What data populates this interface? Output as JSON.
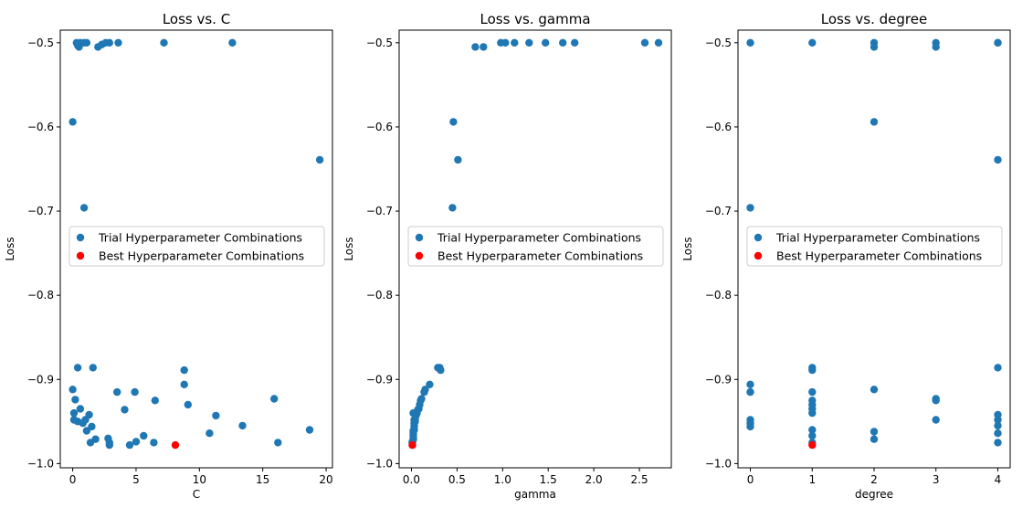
{
  "colors": {
    "trial": "#1f77b4",
    "best": "#ff0000",
    "axis": "#000000",
    "legend_border": "#cccccc"
  },
  "chart_data": [
    {
      "type": "scatter",
      "title": "Loss vs. C",
      "xlabel": "C",
      "ylabel": "Loss",
      "xlim": [
        -0.98,
        20.5
      ],
      "ylim": [
        -1.005,
        -0.485
      ],
      "xticks": [
        0,
        5,
        10,
        15,
        20
      ],
      "xtick_labels": [
        "0",
        "5",
        "10",
        "15",
        "20"
      ],
      "yticks": [
        -1.0,
        -0.9,
        -0.8,
        -0.7,
        -0.6,
        -0.5
      ],
      "ytick_labels": [
        "−1.0",
        "−0.9",
        "−0.8",
        "−0.7",
        "−0.6",
        "−0.5"
      ],
      "legend": {
        "position": "center-left",
        "entries": [
          "Trial Hyperparameter Combinations",
          "Best Hyperparameter Combinations"
        ]
      },
      "series": [
        {
          "name": "Trial Hyperparameter Combinations",
          "color": "#1f77b4",
          "points": [
            [
              0.3,
              -0.5
            ],
            [
              0.4,
              -0.503
            ],
            [
              0.5,
              -0.505
            ],
            [
              0.6,
              -0.5
            ],
            [
              0.9,
              -0.5
            ],
            [
              1.1,
              -0.5
            ],
            [
              2.0,
              -0.505
            ],
            [
              2.3,
              -0.502
            ],
            [
              2.6,
              -0.5
            ],
            [
              2.9,
              -0.5
            ],
            [
              3.6,
              -0.5
            ],
            [
              7.2,
              -0.5
            ],
            [
              12.6,
              -0.5
            ],
            [
              0.0,
              -0.594
            ],
            [
              19.5,
              -0.639
            ],
            [
              0.9,
              -0.696
            ],
            [
              0.4,
              -0.886
            ],
            [
              1.6,
              -0.886
            ],
            [
              8.8,
              -0.889
            ],
            [
              8.8,
              -0.906
            ],
            [
              0.0,
              -0.912
            ],
            [
              3.5,
              -0.915
            ],
            [
              4.9,
              -0.915
            ],
            [
              0.2,
              -0.924
            ],
            [
              6.5,
              -0.925
            ],
            [
              15.9,
              -0.923
            ],
            [
              9.1,
              -0.93
            ],
            [
              0.6,
              -0.935
            ],
            [
              0.1,
              -0.94
            ],
            [
              1.3,
              -0.942
            ],
            [
              4.1,
              -0.936
            ],
            [
              11.3,
              -0.943
            ],
            [
              0.1,
              -0.948
            ],
            [
              0.4,
              -0.95
            ],
            [
              0.8,
              -0.952
            ],
            [
              1.0,
              -0.948
            ],
            [
              1.5,
              -0.956
            ],
            [
              13.4,
              -0.955
            ],
            [
              18.7,
              -0.96
            ],
            [
              1.1,
              -0.961
            ],
            [
              10.8,
              -0.964
            ],
            [
              5.6,
              -0.967
            ],
            [
              1.8,
              -0.971
            ],
            [
              2.8,
              -0.97
            ],
            [
              1.4,
              -0.975
            ],
            [
              2.9,
              -0.975
            ],
            [
              5.0,
              -0.974
            ],
            [
              6.4,
              -0.975
            ],
            [
              16.2,
              -0.975
            ],
            [
              2.9,
              -0.978
            ],
            [
              4.5,
              -0.978
            ]
          ]
        },
        {
          "name": "Best Hyperparameter Combinations",
          "color": "#ff0000",
          "points": [
            [
              8.1,
              -0.978
            ]
          ]
        }
      ]
    },
    {
      "type": "scatter",
      "title": "Loss vs. gamma",
      "xlabel": "gamma",
      "ylabel": "Loss",
      "xlim": [
        -0.135,
        2.85
      ],
      "ylim": [
        -1.005,
        -0.485
      ],
      "xticks": [
        0.0,
        0.5,
        1.0,
        1.5,
        2.0,
        2.5
      ],
      "xtick_labels": [
        "0.0",
        "0.5",
        "1.0",
        "1.5",
        "2.0",
        "2.5"
      ],
      "yticks": [
        -1.0,
        -0.9,
        -0.8,
        -0.7,
        -0.6,
        -0.5
      ],
      "ytick_labels": [
        "−1.0",
        "−0.9",
        "−0.8",
        "−0.7",
        "−0.6",
        "−0.5"
      ],
      "legend": {
        "position": "center-left",
        "entries": [
          "Trial Hyperparameter Combinations",
          "Best Hyperparameter Combinations"
        ]
      },
      "series": [
        {
          "name": "Trial Hyperparameter Combinations",
          "color": "#1f77b4",
          "points": [
            [
              0.7,
              -0.505
            ],
            [
              0.79,
              -0.505
            ],
            [
              0.98,
              -0.5
            ],
            [
              1.03,
              -0.5
            ],
            [
              1.13,
              -0.5
            ],
            [
              1.29,
              -0.5
            ],
            [
              1.47,
              -0.5
            ],
            [
              1.66,
              -0.5
            ],
            [
              1.79,
              -0.5
            ],
            [
              2.56,
              -0.5
            ],
            [
              2.71,
              -0.5
            ],
            [
              0.46,
              -0.594
            ],
            [
              0.51,
              -0.639
            ],
            [
              0.45,
              -0.696
            ],
            [
              0.29,
              -0.886
            ],
            [
              0.31,
              -0.886
            ],
            [
              0.32,
              -0.889
            ],
            [
              0.2,
              -0.906
            ],
            [
              0.15,
              -0.912
            ],
            [
              0.14,
              -0.915
            ],
            [
              0.11,
              -0.923
            ],
            [
              0.1,
              -0.925
            ],
            [
              0.09,
              -0.93
            ],
            [
              0.08,
              -0.935
            ],
            [
              0.07,
              -0.936
            ],
            [
              0.06,
              -0.94
            ],
            [
              0.02,
              -0.94
            ],
            [
              0.05,
              -0.942
            ],
            [
              0.05,
              -0.943
            ],
            [
              0.04,
              -0.948
            ],
            [
              0.03,
              -0.948
            ],
            [
              0.04,
              -0.95
            ],
            [
              0.03,
              -0.952
            ],
            [
              0.03,
              -0.955
            ],
            [
              0.03,
              -0.956
            ],
            [
              0.03,
              -0.96
            ],
            [
              0.02,
              -0.961
            ],
            [
              0.02,
              -0.964
            ],
            [
              0.02,
              -0.967
            ],
            [
              0.02,
              -0.97
            ],
            [
              0.02,
              -0.971
            ],
            [
              0.01,
              -0.974
            ],
            [
              0.01,
              -0.975
            ],
            [
              0.01,
              -0.975
            ],
            [
              0.01,
              -0.975
            ],
            [
              0.01,
              -0.975
            ],
            [
              0.01,
              -0.978
            ]
          ]
        },
        {
          "name": "Best Hyperparameter Combinations",
          "color": "#ff0000",
          "points": [
            [
              0.01,
              -0.978
            ]
          ]
        }
      ]
    },
    {
      "type": "scatter",
      "title": "Loss vs. degree",
      "xlabel": "degree",
      "ylabel": "Loss",
      "xlim": [
        -0.2,
        4.2
      ],
      "ylim": [
        -1.005,
        -0.485
      ],
      "xticks": [
        0,
        1,
        2,
        3,
        4
      ],
      "xtick_labels": [
        "0",
        "1",
        "2",
        "3",
        "4"
      ],
      "yticks": [
        -1.0,
        -0.9,
        -0.8,
        -0.7,
        -0.6,
        -0.5
      ],
      "ytick_labels": [
        "−1.0",
        "−0.9",
        "−0.8",
        "−0.7",
        "−0.6",
        "−0.5"
      ],
      "legend": {
        "position": "center-left",
        "entries": [
          "Trial Hyperparameter Combinations",
          "Best Hyperparameter Combinations"
        ]
      },
      "series": [
        {
          "name": "Trial Hyperparameter Combinations",
          "color": "#1f77b4",
          "points": [
            [
              0,
              -0.5
            ],
            [
              1,
              -0.5
            ],
            [
              2,
              -0.5
            ],
            [
              2,
              -0.505
            ],
            [
              3,
              -0.5
            ],
            [
              3,
              -0.505
            ],
            [
              4,
              -0.5
            ],
            [
              4,
              -0.5
            ],
            [
              2,
              -0.594
            ],
            [
              4,
              -0.639
            ],
            [
              0,
              -0.696
            ],
            [
              1,
              -0.886
            ],
            [
              1,
              -0.889
            ],
            [
              4,
              -0.886
            ],
            [
              0,
              -0.906
            ],
            [
              0,
              -0.915
            ],
            [
              1,
              -0.915
            ],
            [
              2,
              -0.912
            ],
            [
              1,
              -0.925
            ],
            [
              3,
              -0.923
            ],
            [
              3,
              -0.925
            ],
            [
              1,
              -0.93
            ],
            [
              1,
              -0.935
            ],
            [
              1,
              -0.94
            ],
            [
              4,
              -0.942
            ],
            [
              4,
              -0.948
            ],
            [
              0,
              -0.948
            ],
            [
              0,
              -0.952
            ],
            [
              0,
              -0.956
            ],
            [
              3,
              -0.948
            ],
            [
              4,
              -0.955
            ],
            [
              1,
              -0.96
            ],
            [
              2,
              -0.962
            ],
            [
              4,
              -0.964
            ],
            [
              1,
              -0.967
            ],
            [
              2,
              -0.971
            ],
            [
              1,
              -0.975
            ],
            [
              4,
              -0.975
            ]
          ]
        },
        {
          "name": "Best Hyperparameter Combinations",
          "color": "#ff0000",
          "points": [
            [
              1,
              -0.978
            ]
          ]
        }
      ]
    }
  ]
}
